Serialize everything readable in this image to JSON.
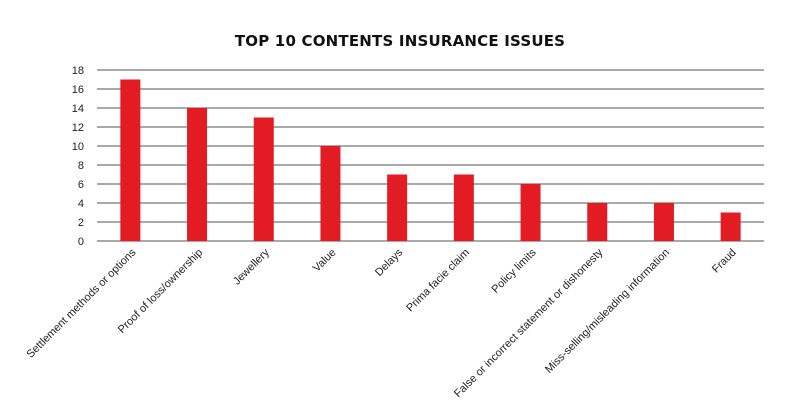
{
  "chart_data": {
    "type": "bar",
    "title": "TOP 10 CONTENTS INSURANCE ISSUES",
    "xlabel": "",
    "ylabel": "",
    "categories": [
      "Settlement methods or options",
      "Proof of loss/ownership",
      "Jewellery",
      "Value",
      "Delays",
      "Prima facie claim",
      "Policy limits",
      "False or incorrect statement or dishonesty",
      "Miss-selling/misleading information",
      "Fraud"
    ],
    "values": [
      17,
      14,
      13,
      10,
      7,
      7,
      6,
      4,
      4,
      3
    ],
    "ylim": [
      0,
      18
    ],
    "yticks": [
      0,
      2,
      4,
      6,
      8,
      10,
      12,
      14,
      16,
      18
    ],
    "grid": true,
    "bar_color": "#e31b23",
    "grid_color": "#1a1a1a"
  }
}
